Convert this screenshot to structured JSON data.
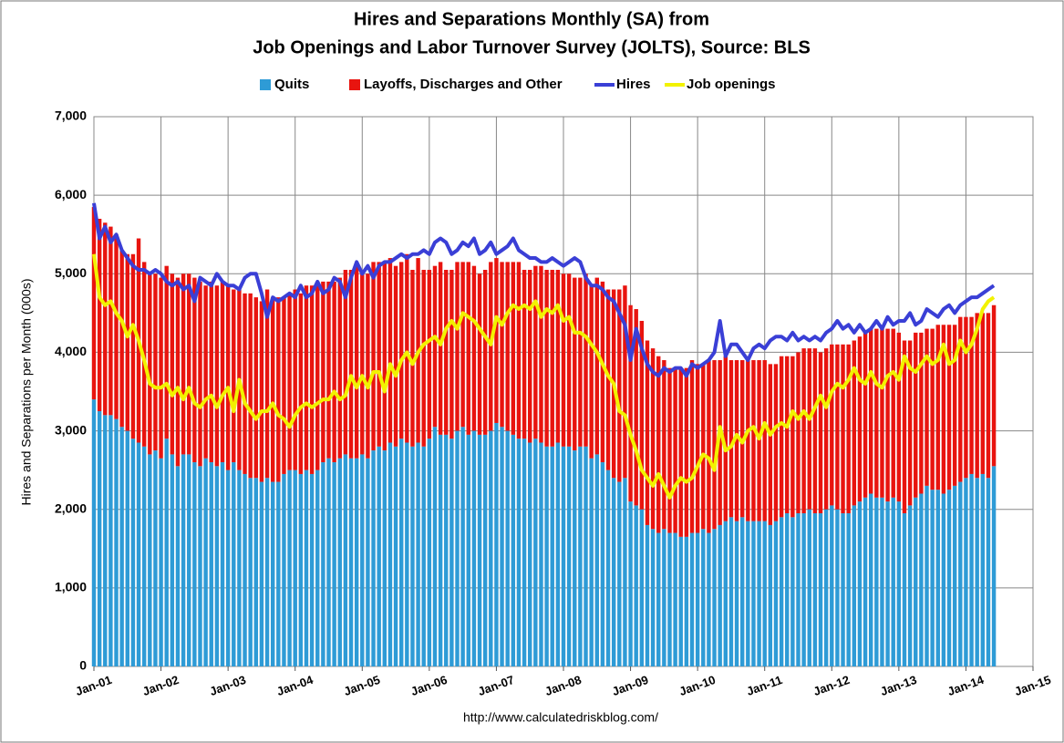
{
  "chart_data": {
    "type": "bar",
    "title": [
      "Hires and Separations Monthly (SA) from",
      "Job Openings and Labor Turnover Survey (JOLTS), Source: BLS"
    ],
    "y_label": "Hires and Separations per Month (000s)",
    "source_note": "http://www.calculatedriskblog.com/",
    "stacked": true,
    "grid": true,
    "x": [
      0,
      1,
      2,
      3,
      4,
      5,
      6,
      7,
      8,
      9,
      10,
      11,
      12,
      13,
      14,
      15,
      16,
      17,
      18,
      19,
      20,
      21,
      22,
      23,
      24,
      25,
      26,
      27,
      28,
      29,
      30,
      31,
      32,
      33,
      34,
      35,
      36,
      37,
      38,
      39,
      40,
      41,
      42,
      43,
      44,
      45,
      46,
      47,
      48,
      49,
      50,
      51,
      52,
      53,
      54,
      55,
      56,
      57,
      58,
      59,
      60,
      61,
      62,
      63,
      64,
      65,
      66,
      67,
      68,
      69,
      70,
      71,
      72,
      73,
      74,
      75,
      76,
      77,
      78,
      79,
      80,
      81,
      82,
      83,
      84,
      85,
      86,
      87,
      88,
      89,
      90,
      91,
      92,
      93,
      94,
      95,
      96,
      97,
      98,
      99,
      100,
      101,
      102,
      103,
      104,
      105,
      106,
      107,
      108,
      109,
      110,
      111,
      112,
      113,
      114,
      115,
      116,
      117,
      118,
      119,
      120,
      121,
      122,
      123,
      124,
      125,
      126,
      127,
      128,
      129,
      130,
      131,
      132,
      133,
      134,
      135,
      136,
      137,
      138,
      139,
      140,
      141,
      142,
      143,
      144,
      145,
      146,
      147,
      148,
      149,
      150,
      151,
      152,
      153,
      154,
      155,
      156,
      157,
      158,
      159,
      160,
      161
    ],
    "xlim": [
      0,
      168
    ],
    "xticks": [
      {
        "value": 0,
        "label": "Jan-01"
      },
      {
        "value": 12,
        "label": "Jan-02"
      },
      {
        "value": 24,
        "label": "Jan-03"
      },
      {
        "value": 36,
        "label": "Jan-04"
      },
      {
        "value": 48,
        "label": "Jan-05"
      },
      {
        "value": 60,
        "label": "Jan-06"
      },
      {
        "value": 72,
        "label": "Jan-07"
      },
      {
        "value": 84,
        "label": "Jan-08"
      },
      {
        "value": 96,
        "label": "Jan-09"
      },
      {
        "value": 108,
        "label": "Jan-10"
      },
      {
        "value": 120,
        "label": "Jan-11"
      },
      {
        "value": 132,
        "label": "Jan-12"
      },
      {
        "value": 144,
        "label": "Jan-13"
      },
      {
        "value": 156,
        "label": "Jan-14"
      },
      {
        "value": 168,
        "label": "Jan-15"
      }
    ],
    "ylim": [
      0,
      7000
    ],
    "yticks": [
      0,
      {
        "value": 1000,
        "label": "1,000"
      },
      {
        "value": 2000,
        "label": "2,000"
      },
      {
        "value": 3000,
        "label": "3,000"
      },
      {
        "value": 4000,
        "label": "4,000"
      },
      {
        "value": 5000,
        "label": "5,000"
      },
      {
        "value": 6000,
        "label": "6,000"
      },
      {
        "value": 7000,
        "label": "7,000"
      }
    ],
    "series": [
      {
        "name": "Quits",
        "type": "bar",
        "color": "#2e9bd6",
        "values": [
          3400,
          3250,
          3200,
          3200,
          3150,
          3050,
          3000,
          2900,
          2850,
          2800,
          2700,
          2750,
          2650,
          2900,
          2700,
          2550,
          2700,
          2700,
          2600,
          2550,
          2650,
          2600,
          2550,
          2600,
          2500,
          2600,
          2500,
          2450,
          2400,
          2400,
          2350,
          2400,
          2350,
          2350,
          2450,
          2500,
          2500,
          2450,
          2500,
          2450,
          2500,
          2600,
          2650,
          2600,
          2650,
          2700,
          2650,
          2650,
          2700,
          2650,
          2750,
          2800,
          2750,
          2850,
          2800,
          2900,
          2850,
          2800,
          2850,
          2800,
          2900,
          3050,
          2950,
          2950,
          2900,
          3000,
          3050,
          2950,
          3000,
          2950,
          2950,
          3000,
          3100,
          3050,
          3000,
          2950,
          2900,
          2900,
          2850,
          2900,
          2850,
          2800,
          2800,
          2850,
          2800,
          2800,
          2750,
          2800,
          2800,
          2650,
          2700,
          2600,
          2500,
          2400,
          2350,
          2400,
          2100,
          2050,
          2000,
          1800,
          1750,
          1700,
          1750,
          1700,
          1700,
          1650,
          1650,
          1700,
          1700,
          1750,
          1700,
          1750,
          1800,
          1850,
          1900,
          1850,
          1900,
          1850,
          1850,
          1850,
          1850,
          1800,
          1850,
          1900,
          1950,
          1900,
          1950,
          1950,
          2000,
          1950,
          1950,
          2000,
          2050,
          2000,
          1950,
          1950,
          2050,
          2100,
          2150,
          2200,
          2150,
          2150,
          2100,
          2150,
          2100,
          1950,
          2050,
          2150,
          2200,
          2300,
          2250,
          2250,
          2200,
          2250,
          2300,
          2350,
          2400,
          2450,
          2400,
          2450,
          2400,
          2550
        ]
      },
      {
        "name": "Layoffs, Discharges and Other",
        "type": "bar",
        "color": "#e8140f",
        "values": [
          2450,
          2450,
          2450,
          2400,
          2350,
          2250,
          2250,
          2350,
          2600,
          2350,
          2300,
          2250,
          2300,
          2200,
          2300,
          2400,
          2300,
          2300,
          2350,
          2350,
          2200,
          2300,
          2300,
          2300,
          2350,
          2200,
          2300,
          2300,
          2350,
          2300,
          2300,
          2400,
          2350,
          2350,
          2250,
          2250,
          2300,
          2300,
          2350,
          2400,
          2350,
          2300,
          2250,
          2300,
          2300,
          2350,
          2400,
          2450,
          2300,
          2350,
          2400,
          2350,
          2400,
          2350,
          2300,
          2250,
          2400,
          2250,
          2350,
          2250,
          2150,
          2050,
          2200,
          2100,
          2150,
          2150,
          2100,
          2200,
          2100,
          2050,
          2100,
          2150,
          2100,
          2100,
          2150,
          2200,
          2250,
          2150,
          2200,
          2200,
          2250,
          2250,
          2250,
          2200,
          2200,
          2200,
          2200,
          2150,
          2200,
          2200,
          2250,
          2300,
          2300,
          2400,
          2450,
          2450,
          2500,
          2500,
          2400,
          2350,
          2300,
          2250,
          2150,
          2100,
          2100,
          2150,
          2150,
          2200,
          2150,
          2100,
          2200,
          2150,
          2100,
          2100,
          2000,
          2050,
          2000,
          2050,
          2050,
          2050,
          2050,
          2050,
          2000,
          2050,
          2000,
          2050,
          2050,
          2100,
          2050,
          2100,
          2050,
          2050,
          2050,
          2100,
          2150,
          2150,
          2100,
          2100,
          2100,
          2100,
          2150,
          2150,
          2200,
          2150,
          2150,
          2200,
          2100,
          2100,
          2050,
          2000,
          2050,
          2100,
          2150,
          2100,
          2050,
          2100,
          2050,
          2000,
          2100,
          2050,
          2100,
          2050
        ]
      },
      {
        "name": "Hires",
        "type": "line",
        "color": "#3a3fd6",
        "values": [
          5900,
          5450,
          5600,
          5400,
          5500,
          5300,
          5200,
          5100,
          5050,
          5050,
          5000,
          5050,
          5000,
          4900,
          4850,
          4900,
          4800,
          4850,
          4650,
          4950,
          4900,
          4850,
          5000,
          4900,
          4850,
          4850,
          4800,
          4950,
          5000,
          5000,
          4750,
          4450,
          4700,
          4650,
          4700,
          4750,
          4700,
          4850,
          4700,
          4750,
          4900,
          4750,
          4800,
          4950,
          4900,
          4700,
          4950,
          5150,
          5000,
          5100,
          4950,
          5100,
          5150,
          5150,
          5200,
          5250,
          5200,
          5250,
          5250,
          5300,
          5250,
          5400,
          5450,
          5400,
          5250,
          5300,
          5400,
          5350,
          5450,
          5250,
          5300,
          5400,
          5250,
          5300,
          5350,
          5450,
          5300,
          5250,
          5200,
          5200,
          5150,
          5150,
          5200,
          5150,
          5100,
          5150,
          5200,
          5150,
          4950,
          4850,
          4850,
          4800,
          4700,
          4650,
          4500,
          4350,
          3900,
          4300,
          4050,
          3850,
          3750,
          3700,
          3800,
          3750,
          3800,
          3800,
          3700,
          3850,
          3800,
          3850,
          3900,
          4000,
          4400,
          3950,
          4100,
          4100,
          4000,
          3900,
          4050,
          4100,
          4050,
          4150,
          4200,
          4200,
          4150,
          4250,
          4150,
          4200,
          4150,
          4200,
          4150,
          4250,
          4300,
          4400,
          4300,
          4350,
          4250,
          4350,
          4250,
          4300,
          4400,
          4300,
          4450,
          4350,
          4400,
          4400,
          4500,
          4350,
          4400,
          4550,
          4500,
          4450,
          4550,
          4600,
          4500,
          4600,
          4650,
          4700,
          4700,
          4750,
          4800,
          4850
        ]
      },
      {
        "name": "Job openings",
        "type": "line",
        "color": "#f2f200",
        "values": [
          5250,
          4700,
          4600,
          4650,
          4500,
          4400,
          4200,
          4350,
          4150,
          3900,
          3600,
          3550,
          3550,
          3600,
          3450,
          3550,
          3400,
          3550,
          3350,
          3300,
          3400,
          3450,
          3300,
          3450,
          3550,
          3250,
          3650,
          3350,
          3250,
          3150,
          3250,
          3250,
          3350,
          3200,
          3150,
          3050,
          3200,
          3300,
          3350,
          3300,
          3350,
          3400,
          3400,
          3500,
          3400,
          3450,
          3700,
          3550,
          3700,
          3550,
          3750,
          3750,
          3500,
          3850,
          3700,
          3900,
          4000,
          3850,
          4000,
          4100,
          4150,
          4200,
          4100,
          4300,
          4400,
          4300,
          4500,
          4450,
          4400,
          4300,
          4200,
          4100,
          4450,
          4350,
          4500,
          4600,
          4550,
          4600,
          4550,
          4650,
          4450,
          4550,
          4500,
          4600,
          4400,
          4450,
          4250,
          4250,
          4200,
          4100,
          4000,
          3850,
          3700,
          3600,
          3250,
          3200,
          2950,
          2750,
          2500,
          2400,
          2300,
          2450,
          2300,
          2150,
          2300,
          2400,
          2350,
          2400,
          2550,
          2700,
          2650,
          2500,
          3050,
          2750,
          2800,
          2950,
          2850,
          3000,
          3050,
          2900,
          3100,
          2950,
          3050,
          3100,
          3050,
          3250,
          3150,
          3250,
          3150,
          3300,
          3450,
          3300,
          3500,
          3600,
          3550,
          3650,
          3800,
          3650,
          3600,
          3750,
          3600,
          3550,
          3700,
          3750,
          3650,
          3950,
          3800,
          3750,
          3850,
          3950,
          3850,
          3900,
          4100,
          3850,
          3900,
          4150,
          4000,
          4100,
          4300,
          4550,
          4650,
          4700
        ]
      }
    ]
  }
}
